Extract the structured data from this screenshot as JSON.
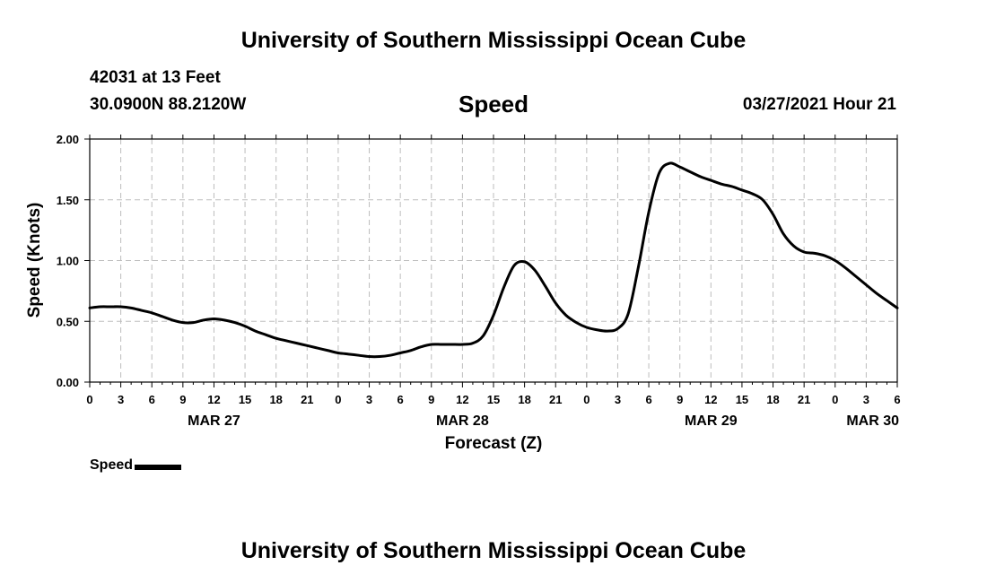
{
  "header": {
    "title": "University of Southern Mississippi Ocean Cube",
    "station": "42031 at 13 Feet",
    "coords": "30.0900N  88.2120W",
    "variable": "Speed",
    "timestamp": "03/27/2021 Hour 21"
  },
  "footer": {
    "title": "University of Southern Mississippi Ocean Cube"
  },
  "legend": {
    "label": "Speed"
  },
  "chart_data": {
    "type": "line",
    "xlabel": "Forecast (Z)",
    "ylabel": "Speed (Knots)",
    "x_unit": "hours",
    "xlim": [
      0,
      78
    ],
    "ylim": [
      0,
      2
    ],
    "x_tick_step": 3,
    "x_tick_labels": [
      "0",
      "3",
      "6",
      "9",
      "12",
      "15",
      "18",
      "21",
      "0",
      "3",
      "6",
      "9",
      "12",
      "15",
      "18",
      "21",
      "0",
      "3",
      "6",
      "9",
      "12",
      "15",
      "18",
      "21",
      "0",
      "3",
      "6"
    ],
    "y_ticks": [
      0,
      0.5,
      1,
      1.5,
      2
    ],
    "y_tick_labels": [
      "0.00",
      "0.50",
      "1.00",
      "1.50",
      "2.00"
    ],
    "date_labels": [
      {
        "x": 12,
        "label": "MAR 27"
      },
      {
        "x": 36,
        "label": "MAR 28"
      },
      {
        "x": 60,
        "label": "MAR 29"
      },
      {
        "x": 84,
        "label": "MAR 30"
      }
    ],
    "grid": true,
    "series": [
      {
        "name": "Speed",
        "x": [
          0,
          1,
          2,
          3,
          4,
          5,
          6,
          7,
          8,
          9,
          10,
          11,
          12,
          13,
          14,
          15,
          16,
          17,
          18,
          19,
          20,
          21,
          22,
          23,
          24,
          25,
          26,
          27,
          28,
          29,
          30,
          31,
          32,
          33,
          34,
          35,
          36,
          37,
          38,
          39,
          40,
          41,
          42,
          43,
          44,
          45,
          46,
          47,
          48,
          49,
          50,
          51,
          52,
          53,
          54,
          55,
          56,
          57,
          58,
          59,
          60,
          61,
          62,
          63,
          64,
          65,
          66,
          67,
          68,
          69,
          70,
          71,
          72,
          73,
          74,
          75,
          76,
          77,
          78
        ],
        "values": [
          0.61,
          0.62,
          0.62,
          0.62,
          0.61,
          0.59,
          0.57,
          0.54,
          0.51,
          0.49,
          0.49,
          0.51,
          0.52,
          0.51,
          0.49,
          0.46,
          0.42,
          0.39,
          0.36,
          0.34,
          0.32,
          0.3,
          0.28,
          0.26,
          0.24,
          0.23,
          0.22,
          0.21,
          0.21,
          0.22,
          0.24,
          0.26,
          0.29,
          0.31,
          0.31,
          0.31,
          0.31,
          0.32,
          0.38,
          0.55,
          0.78,
          0.96,
          0.99,
          0.92,
          0.79,
          0.65,
          0.55,
          0.49,
          0.45,
          0.43,
          0.42,
          0.44,
          0.56,
          0.95,
          1.4,
          1.72,
          1.8,
          1.77,
          1.73,
          1.69,
          1.66,
          1.63,
          1.61,
          1.58,
          1.55,
          1.5,
          1.38,
          1.22,
          1.12,
          1.07,
          1.06,
          1.04,
          1.0,
          0.94,
          0.87,
          0.8,
          0.73,
          0.67,
          0.61
        ]
      }
    ]
  }
}
